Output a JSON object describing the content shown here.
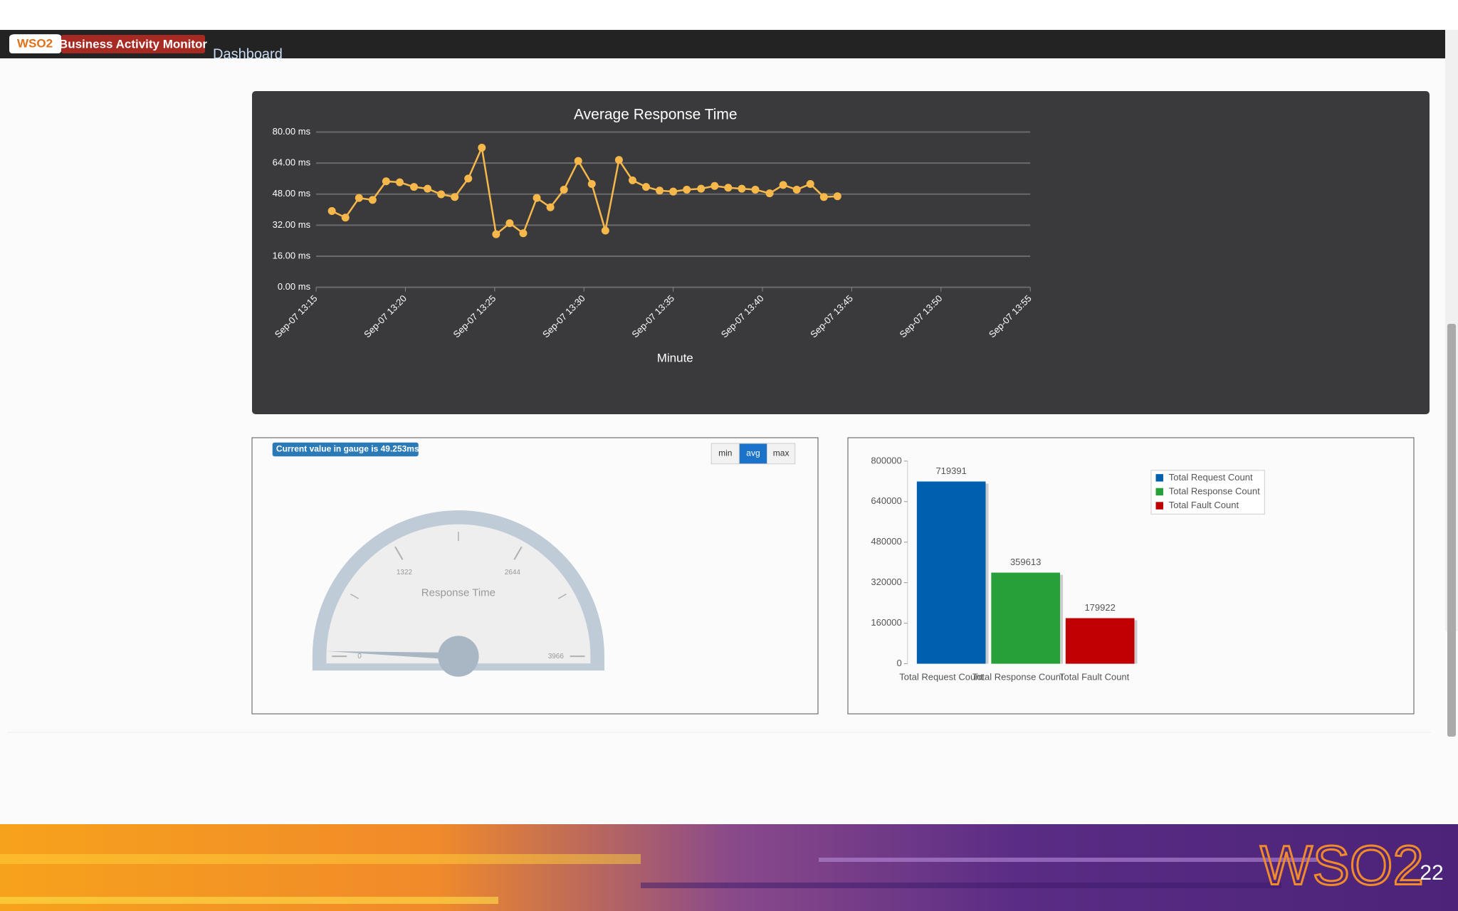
{
  "header": {
    "logo": "WSO2",
    "product": "Business Activity Monitor",
    "nav": "Dashboard"
  },
  "chart_data": [
    {
      "type": "line",
      "title": "Average Response Time",
      "x_label": "Minute",
      "color": "#f7b84b",
      "grid": true,
      "x": [
        15.88,
        16.64,
        17.4,
        18.16,
        18.92,
        19.68,
        20.48,
        21.24,
        22,
        22.76,
        23.52,
        24.28,
        25.08,
        25.84,
        26.6,
        27.36,
        28.12,
        28.88,
        29.68,
        30.44,
        31.2,
        31.96,
        32.72,
        33.48,
        34.24,
        35,
        35.76,
        36.56,
        37.32,
        38.08,
        38.84,
        39.6,
        40.4,
        41.16,
        41.92,
        42.68,
        43.44,
        44.2
      ],
      "values": [
        39.3,
        35.9,
        46,
        45,
        54.6,
        54.1,
        51.7,
        50.8,
        47.9,
        46.5,
        56,
        71.9,
        27.3,
        33,
        27.8,
        46,
        41.2,
        50.3,
        65.1,
        53.2,
        29.2,
        65.6,
        55.1,
        51.7,
        49.8,
        49.3,
        50.3,
        50.8,
        52.2,
        51.3,
        50.8,
        50.3,
        48.4,
        52.7,
        50.3,
        53.2,
        46.5,
        46.9
      ],
      "xlim": [
        15,
        55
      ],
      "xticks": [
        {
          "value": 15,
          "label": "Sep-07 13:15"
        },
        {
          "value": 20,
          "label": "Sep-07 13:20"
        },
        {
          "value": 25,
          "label": "Sep-07 13:25"
        },
        {
          "value": 30,
          "label": "Sep-07 13:30"
        },
        {
          "value": 35,
          "label": "Sep-07 13:35"
        },
        {
          "value": 40,
          "label": "Sep-07 13:40"
        },
        {
          "value": 45,
          "label": "Sep-07 13:45"
        },
        {
          "value": 50,
          "label": "Sep-07 13:50"
        },
        {
          "value": 55,
          "label": "Sep-07 13:55"
        }
      ],
      "ylim": [
        0,
        80
      ],
      "yticks": [
        {
          "value": 0,
          "label": "0.00 ms"
        },
        {
          "value": 16,
          "label": "16.00 ms"
        },
        {
          "value": 32,
          "label": "32.00 ms"
        },
        {
          "value": 48,
          "label": "48.00 ms"
        },
        {
          "value": 64,
          "label": "64.00 ms"
        },
        {
          "value": 80,
          "label": "80.00 ms"
        }
      ]
    },
    {
      "type": "gauge",
      "badge": "Current value in gauge is 49.253ms",
      "buttons": [
        "min",
        "avg",
        "max"
      ],
      "active_button": 1,
      "label": "Response Time",
      "value": 49.253,
      "range": [
        0,
        3966
      ],
      "ticks": [
        0,
        1322,
        2644,
        3966
      ]
    },
    {
      "type": "bar",
      "categories": [
        "Total Request Count",
        "Total Response Count",
        "Total Fault Count"
      ],
      "values": [
        719391,
        359613,
        179922
      ],
      "colors": [
        "#0060b0",
        "#28a039",
        "#c00000"
      ],
      "ylim": [
        0,
        800000
      ],
      "yticks": [
        0,
        160000,
        320000,
        480000,
        640000,
        800000
      ],
      "legend": "top-right"
    }
  ],
  "footer": {
    "logo": "WSO2",
    "page": "22"
  }
}
